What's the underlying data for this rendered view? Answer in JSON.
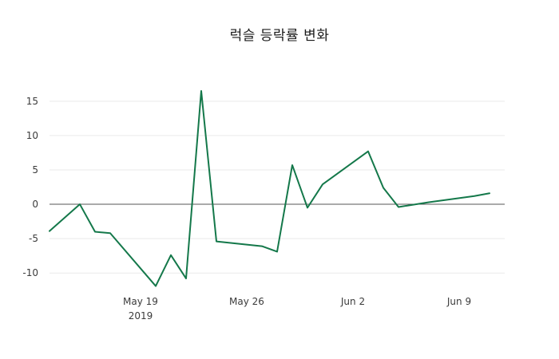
{
  "chart_data": {
    "type": "line",
    "title": "럭슬 등락률 변화",
    "xlabel": "",
    "ylabel": "",
    "background": "#ffffff",
    "grid": true,
    "grid_color": "#e9e9e9",
    "zero_line": true,
    "zero_line_color": "#555555",
    "legend": "none",
    "x_domain": [
      "2019-05-13",
      "2019-06-12"
    ],
    "ylim": [
      -12.3,
      18.7
    ],
    "yticks": [
      -10,
      -5,
      0,
      5,
      10,
      15
    ],
    "xticks": [
      {
        "date": "2019-05-19",
        "label": "May 19",
        "sublabel": "2019"
      },
      {
        "date": "2019-05-26",
        "label": "May 26",
        "sublabel": ""
      },
      {
        "date": "2019-06-02",
        "label": "Jun 2",
        "sublabel": ""
      },
      {
        "date": "2019-06-09",
        "label": "Jun 9",
        "sublabel": ""
      }
    ],
    "series": [
      {
        "name": "등락률 (%)",
        "color": "#14784a",
        "line_width": 2,
        "x": [
          "2019-05-13",
          "2019-05-15",
          "2019-05-16",
          "2019-05-17",
          "2019-05-20",
          "2019-05-21",
          "2019-05-22",
          "2019-05-23",
          "2019-05-24",
          "2019-05-27",
          "2019-05-28",
          "2019-05-29",
          "2019-05-30",
          "2019-05-31",
          "2019-06-03",
          "2019-06-04",
          "2019-06-05",
          "2019-06-07",
          "2019-06-10",
          "2019-06-11"
        ],
        "y": [
          -3.9,
          0.0,
          -4.0,
          -4.2,
          -11.9,
          -7.4,
          -10.8,
          16.5,
          -5.4,
          -6.1,
          -6.9,
          5.7,
          -0.5,
          2.9,
          7.7,
          2.4,
          -0.4,
          0.3,
          1.2,
          1.6
        ]
      }
    ],
    "tick_label_color": "#3b3b3b",
    "tick_label_size": 12
  }
}
